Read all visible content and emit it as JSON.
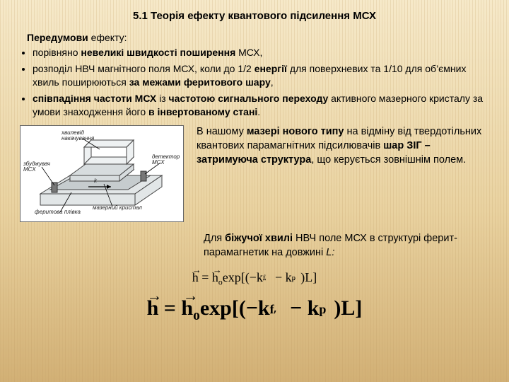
{
  "colors": {
    "title": "#000000",
    "text": "#000000",
    "body_bg_top": "#f6e9c9",
    "body_bg_bottom": "#d8b97e",
    "diagram_bg": "#ffffff",
    "diagram_border": "#666666",
    "diagram_fill": "#cfd5d7",
    "diagram_stroke": "#444444"
  },
  "title": "5.1 Теорія ефекту квантового підсилення МСХ",
  "intro_prefix": "Передумови",
  "intro_suffix": " ефекту:",
  "bullets": [
    "порівняно <b>невеликі швидкості поширення</b> МСХ,",
    "розподіл НВЧ магнітного поля МСХ, коли до 1/2 <b>енергії</b> для поверхневих та 1/10 для об’ємних хвиль поширюються <b>за межами феритового шару</b>,",
    "<b>співпадіння частоти МСХ</b> із <b>частотою сигнального переходу</b> активного мазерного кристалу за умови знаходження його <b>в інвертованому стані</b>."
  ],
  "side_paragraph": "В нашому <b>мазері нового типу</b> на відміну від твердотільних квантових парамагнітних підсилювачів <b>шар ЗІГ – затримуюча структура</b>, що керується зовнішнім полем.",
  "under_paragraph": "Для <b>біжучої хвилі</b> НВЧ поле МСХ в структурі ферит-парамагнетик на довжині <i>L:</i>",
  "eq1": {
    "left": "h",
    "right_base": "h",
    "right_sub": "o",
    "op": "exp",
    "inside": "(−k<span class='subsup'><span class='s-sub'>f</span><span class='s-sup'>′′</span></span> − k<span class='subsup'><span class='s-sub'>p</span><span class='s-sup'>′′</span></span>)L"
  },
  "eq2": {
    "left": "h",
    "right_base": "h",
    "right_sub": "o",
    "op": "exp",
    "inside": "(−k<span class='subsup'><span class='s-sub'>f</span><span class='s-sup'>′′</span></span> − k<span class='subsup'><span class='s-sub'>p</span><span class='s-sup'>′′</span></span>)L"
  },
  "diagram_labels": {
    "wg": "хвилевід накачування",
    "exciter": "збуджувач МСХ",
    "detector": "детектор МСХ",
    "crystal": "мазерний кристал",
    "film": "феритова плівка",
    "k": "k"
  }
}
